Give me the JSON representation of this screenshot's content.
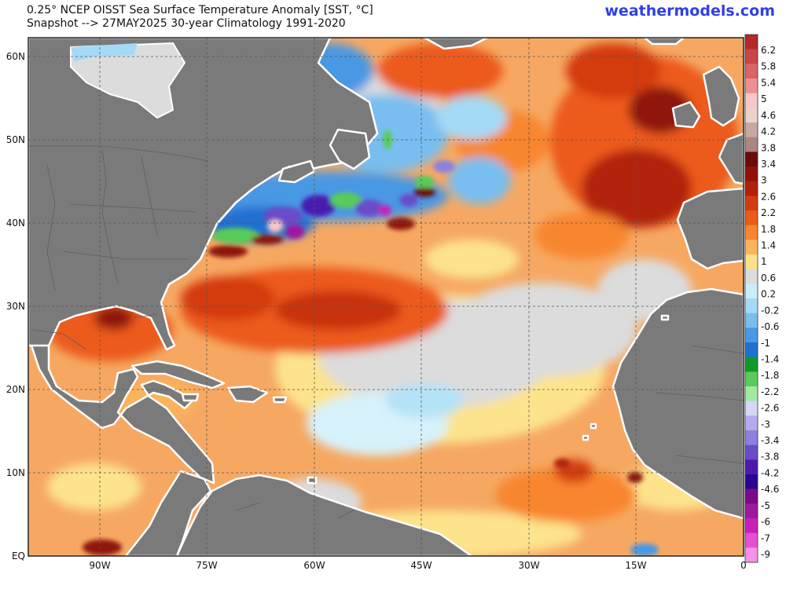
{
  "header": {
    "title_line1": "0.25° NCEP OISST Sea Surface Temperature Anomaly [SST, °C]",
    "title_line2": "Snapshot --> 27MAY2025   30-year Climatology 1991-2020",
    "brand": "weathermodels.com"
  },
  "map": {
    "lat_labels": [
      "60N",
      "50N",
      "40N",
      "30N",
      "20N",
      "10N",
      "EQ"
    ],
    "lon_labels": [
      "90W",
      "75W",
      "60W",
      "45W",
      "30W",
      "15W",
      "0"
    ],
    "colors": {
      "land": "#7a7a7a",
      "ocean_neutral": "#dcdcdc",
      "grid": "#555555"
    }
  },
  "colorbar": {
    "labels": [
      "6.2",
      "5.8",
      "5.4",
      "5",
      "4.6",
      "4.2",
      "3.8",
      "3.4",
      "3",
      "2.6",
      "2.2",
      "1.8",
      "1.4",
      "1",
      "0.6",
      "0.2",
      "-0.2",
      "-0.6",
      "-1",
      "-1.4",
      "-1.8",
      "-2.2",
      "-2.6",
      "-3",
      "-3.4",
      "-3.8",
      "-4.2",
      "-4.6",
      "-5",
      "-6",
      "-7",
      "-9"
    ],
    "colors": [
      "#b42828",
      "#c84646",
      "#dc6464",
      "#ee9090",
      "#f6c8c8",
      "#ecd2c8",
      "#c8a8a0",
      "#a88880",
      "#6a0a0a",
      "#8e1208",
      "#b2200a",
      "#d43a10",
      "#ec5a1c",
      "#f8862e",
      "#fcb45a",
      "#fee08c",
      "#dcdcdc",
      "#c8eefa",
      "#a4daf6",
      "#78bef0",
      "#4a98e4",
      "#2070d0",
      "#0e9a2a",
      "#58cc58",
      "#a4e8a0",
      "#d6d6f8",
      "#b4aaee",
      "#8c80e0",
      "#6a4cc8",
      "#4a1ab0",
      "#280890",
      "#7a0a8a",
      "#a0189e",
      "#c820b8",
      "#e650d0",
      "#f690e8"
    ]
  }
}
